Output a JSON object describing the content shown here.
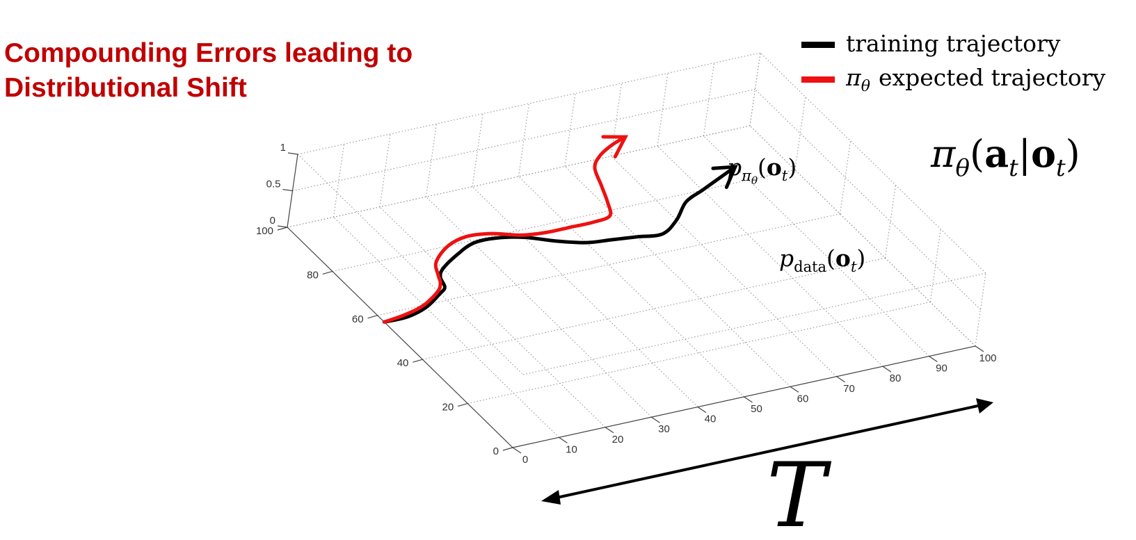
{
  "slide": {
    "title_line1": "Compounding Errors leading to",
    "title_line2": "Distributional Shift"
  },
  "legend": {
    "items": [
      {
        "label": "training trajectory",
        "color": "#000000"
      },
      {
        "label": "expected trajectory",
        "symbol": "π",
        "subscript": "θ",
        "color": "#ee1111"
      }
    ]
  },
  "annotations": {
    "policy": {
      "pi": "π",
      "theta": "θ",
      "open": "(",
      "a": "a",
      "t1": "t",
      "bar": "|",
      "o": "o",
      "t2": "t",
      "close": ")"
    },
    "p_pi": {
      "p": "p",
      "pi": "π",
      "theta": "θ",
      "open": "(",
      "o": "o",
      "t": "t",
      "close": ")"
    },
    "p_data": {
      "p": "p",
      "data": "data",
      "open": "(",
      "o": "o",
      "t": "t",
      "close": ")"
    },
    "time_axis": "T"
  },
  "chart_data": {
    "type": "line",
    "projection": "3d",
    "grid": true,
    "x_axis": {
      "ticks": [
        0,
        10,
        20,
        30,
        40,
        50,
        60,
        70,
        80,
        90,
        100
      ],
      "range": [
        0,
        100
      ]
    },
    "y_axis": {
      "ticks": [
        0,
        20,
        40,
        60,
        80,
        100
      ],
      "range": [
        0,
        100
      ]
    },
    "z_axis": {
      "ticks": [
        0,
        0.5,
        1
      ],
      "tick_labels": [
        "0",
        "0.5",
        "1"
      ],
      "range": [
        0,
        1
      ]
    },
    "series": [
      {
        "name": "training trajectory",
        "color": "#000000",
        "points": [
          [
            0,
            57
          ],
          [
            5,
            57
          ],
          [
            10,
            59
          ],
          [
            15,
            63
          ],
          [
            17,
            65
          ],
          [
            18,
            69
          ],
          [
            20,
            72
          ],
          [
            25,
            76
          ],
          [
            30,
            79
          ],
          [
            35,
            79
          ],
          [
            40,
            77
          ],
          [
            45,
            73
          ],
          [
            50,
            70
          ],
          [
            55,
            69
          ],
          [
            60,
            68
          ],
          [
            65,
            67
          ],
          [
            70,
            71
          ],
          [
            75,
            77
          ],
          [
            80,
            80
          ],
          [
            85,
            83
          ],
          [
            90,
            86
          ]
        ]
      },
      {
        "name": "expected trajectory",
        "color": "#ee1111",
        "points": [
          [
            0,
            57
          ],
          [
            5,
            58
          ],
          [
            10,
            60
          ],
          [
            15,
            64
          ],
          [
            17,
            67
          ],
          [
            18,
            70
          ],
          [
            20,
            75
          ],
          [
            25,
            80
          ],
          [
            30,
            82
          ],
          [
            35,
            81
          ],
          [
            40,
            78
          ],
          [
            45,
            77
          ],
          [
            50,
            77
          ],
          [
            55,
            77
          ],
          [
            59,
            78
          ],
          [
            61,
            83
          ],
          [
            63,
            90
          ],
          [
            65,
            97
          ],
          [
            68,
            101
          ],
          [
            72,
            104
          ],
          [
            76,
            106
          ]
        ]
      }
    ]
  }
}
